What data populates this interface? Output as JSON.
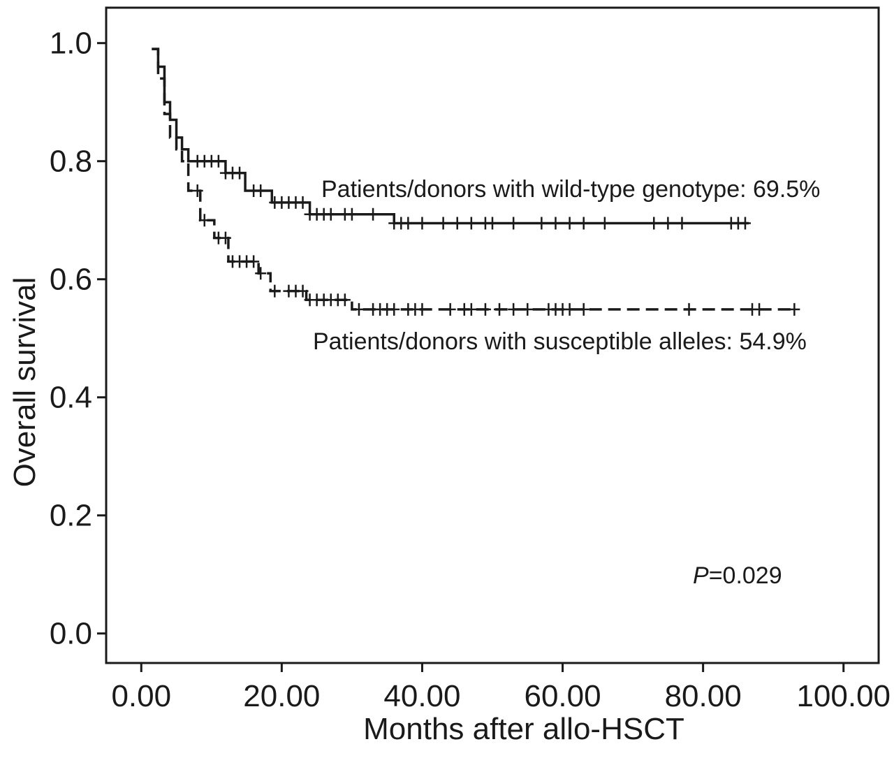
{
  "chart_data": {
    "type": "line",
    "subtype": "kaplan-meier",
    "title": "",
    "xlabel": "Months after allo-HSCT",
    "ylabel": "Overall survival",
    "xlim": [
      -5,
      105
    ],
    "ylim": [
      -0.05,
      1.06
    ],
    "xticks": [
      0,
      20,
      40,
      60,
      80,
      100
    ],
    "xtick_labels": [
      "0.00",
      "20.00",
      "40.00",
      "60.00",
      "80.00",
      "100.00"
    ],
    "yticks": [
      0.0,
      0.2,
      0.4,
      0.6,
      0.8,
      1.0
    ],
    "ytick_labels": [
      "0.0",
      "0.2",
      "0.4",
      "0.6",
      "0.8",
      "1.0"
    ],
    "grid": false,
    "series": [
      {
        "name": "Patients/donors with wild-type genotype",
        "style": "solid",
        "x": [
          1.5,
          2.4,
          3.3,
          4.1,
          5.0,
          5.8,
          6.7,
          12.0,
          14.8,
          18.6,
          24.0,
          36.0,
          86.5
        ],
        "y": [
          0.99,
          0.96,
          0.9,
          0.87,
          0.84,
          0.82,
          0.8,
          0.78,
          0.75,
          0.73,
          0.71,
          0.695,
          0.695
        ],
        "censor_x": [
          8,
          9,
          10,
          11,
          12,
          13,
          14,
          16,
          17,
          19,
          20,
          21,
          22,
          23,
          24,
          25,
          26,
          27,
          29,
          30,
          33,
          36,
          37,
          38,
          40,
          43,
          45,
          47,
          49,
          50,
          53,
          57,
          59,
          61,
          63,
          66,
          73,
          75,
          77,
          84,
          85,
          86
        ],
        "final_label": "Patients/donors with wild-type genotype: 69.5%"
      },
      {
        "name": "Patients/donors with susceptible alleles",
        "style": "dashed",
        "x": [
          1.5,
          2.4,
          3.3,
          4.1,
          5.0,
          5.8,
          6.7,
          8.4,
          10.4,
          12.4,
          16.7,
          18.4,
          23.5,
          30.0,
          93.0
        ],
        "y": [
          0.99,
          0.94,
          0.88,
          0.84,
          0.82,
          0.8,
          0.75,
          0.7,
          0.67,
          0.63,
          0.61,
          0.58,
          0.565,
          0.549,
          0.549
        ],
        "censor_x": [
          8,
          9,
          11,
          12,
          13,
          14,
          15,
          16,
          17,
          19,
          21,
          22,
          23,
          24,
          25,
          26,
          27,
          28,
          29,
          31,
          33,
          34,
          35,
          36,
          38,
          39,
          40,
          44,
          46,
          47,
          49,
          51,
          53,
          55,
          58,
          59,
          60,
          61,
          63,
          78,
          87,
          88,
          93
        ],
        "final_label": "Patients/donors with susceptible alleles: 54.9%"
      }
    ],
    "annotations": [
      {
        "p_symbol": "P",
        "p_value": "=0.029"
      }
    ]
  }
}
